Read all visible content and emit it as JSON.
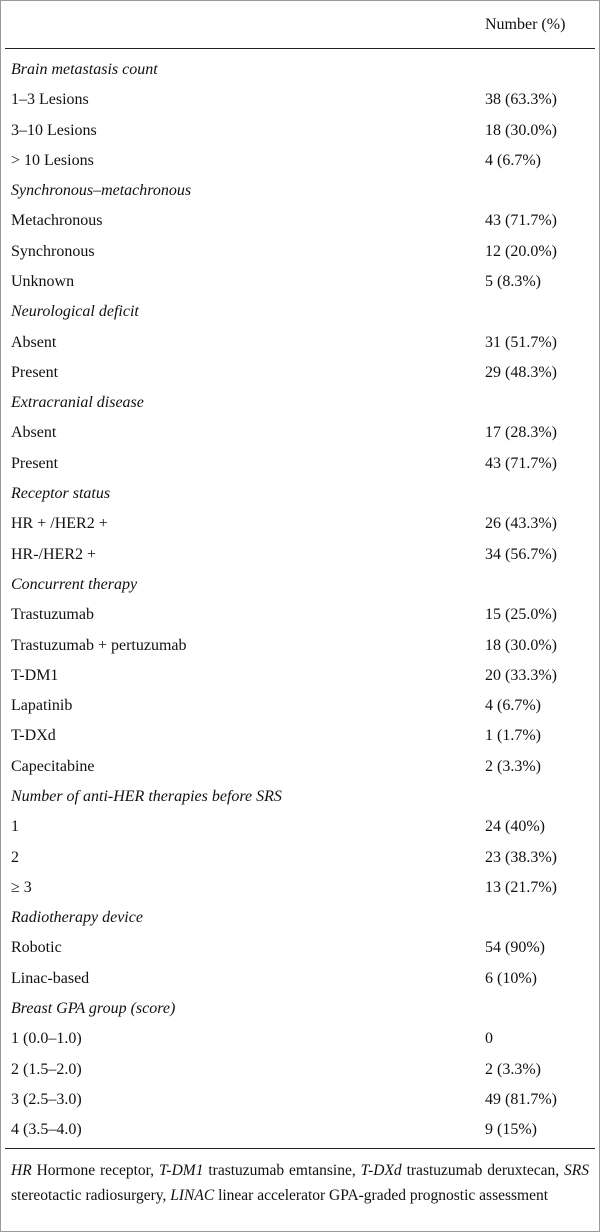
{
  "header": {
    "column": "Number (%)"
  },
  "sections": [
    {
      "title": "Brain metastasis count",
      "rows": [
        [
          "1–3 Lesions",
          "38 (63.3%)"
        ],
        [
          "3–10 Lesions",
          "18 (30.0%)"
        ],
        [
          "> 10 Lesions",
          "4 (6.7%)"
        ]
      ]
    },
    {
      "title": "Synchronous–metachronous",
      "rows": [
        [
          "Metachronous",
          "43 (71.7%)"
        ],
        [
          "Synchronous",
          "12 (20.0%)"
        ],
        [
          "Unknown",
          "5 (8.3%)"
        ]
      ]
    },
    {
      "title": "Neurological deficit",
      "rows": [
        [
          "Absent",
          "31 (51.7%)"
        ],
        [
          "Present",
          "29 (48.3%)"
        ]
      ]
    },
    {
      "title": "Extracranial disease",
      "rows": [
        [
          "Absent",
          "17 (28.3%)"
        ],
        [
          "Present",
          "43 (71.7%)"
        ]
      ]
    },
    {
      "title": "Receptor status",
      "rows": [
        [
          "HR + /HER2 +",
          "26 (43.3%)"
        ],
        [
          "HR-/HER2 +",
          "34 (56.7%)"
        ]
      ]
    },
    {
      "title": "Concurrent therapy",
      "rows": [
        [
          "Trastuzumab",
          "15 (25.0%)"
        ],
        [
          "Trastuzumab + pertuzumab",
          "18 (30.0%)"
        ],
        [
          "T-DM1",
          "20 (33.3%)"
        ],
        [
          "Lapatinib",
          "4 (6.7%)"
        ],
        [
          "T-DXd",
          "1 (1.7%)"
        ],
        [
          "Capecitabine",
          "2 (3.3%)"
        ]
      ]
    },
    {
      "title": "Number of anti-HER therapies before SRS",
      "rows": [
        [
          "1",
          "24 (40%)"
        ],
        [
          "2",
          "23 (38.3%)"
        ],
        [
          "≥ 3",
          "13 (21.7%)"
        ]
      ]
    },
    {
      "title": "Radiotherapy device",
      "rows": [
        [
          "Robotic",
          "54 (90%)"
        ],
        [
          "Linac-based",
          "6 (10%)"
        ]
      ]
    },
    {
      "title": "Breast GPA group (score)",
      "rows": [
        [
          "1 (0.0–1.0)",
          "0"
        ],
        [
          "2 (1.5–2.0)",
          "2 (3.3%)"
        ],
        [
          "3 (2.5–3.0)",
          "49 (81.7%)"
        ],
        [
          "4 (3.5–4.0)",
          "9 (15%)"
        ]
      ]
    }
  ],
  "footnote": [
    {
      "abbr": "HR",
      "definition": "Hormone receptor,"
    },
    {
      "abbr": "T-DM1",
      "definition": "trastuzumab emtansine,"
    },
    {
      "abbr": "T-DXd",
      "definition": "trastuzumab deruxtecan,"
    },
    {
      "abbr": "SRS",
      "definition": "stereotactic radiosurgery,"
    },
    {
      "abbr": "LINAC",
      "definition": "linear accelerator GPA-graded prognostic assessment"
    }
  ]
}
